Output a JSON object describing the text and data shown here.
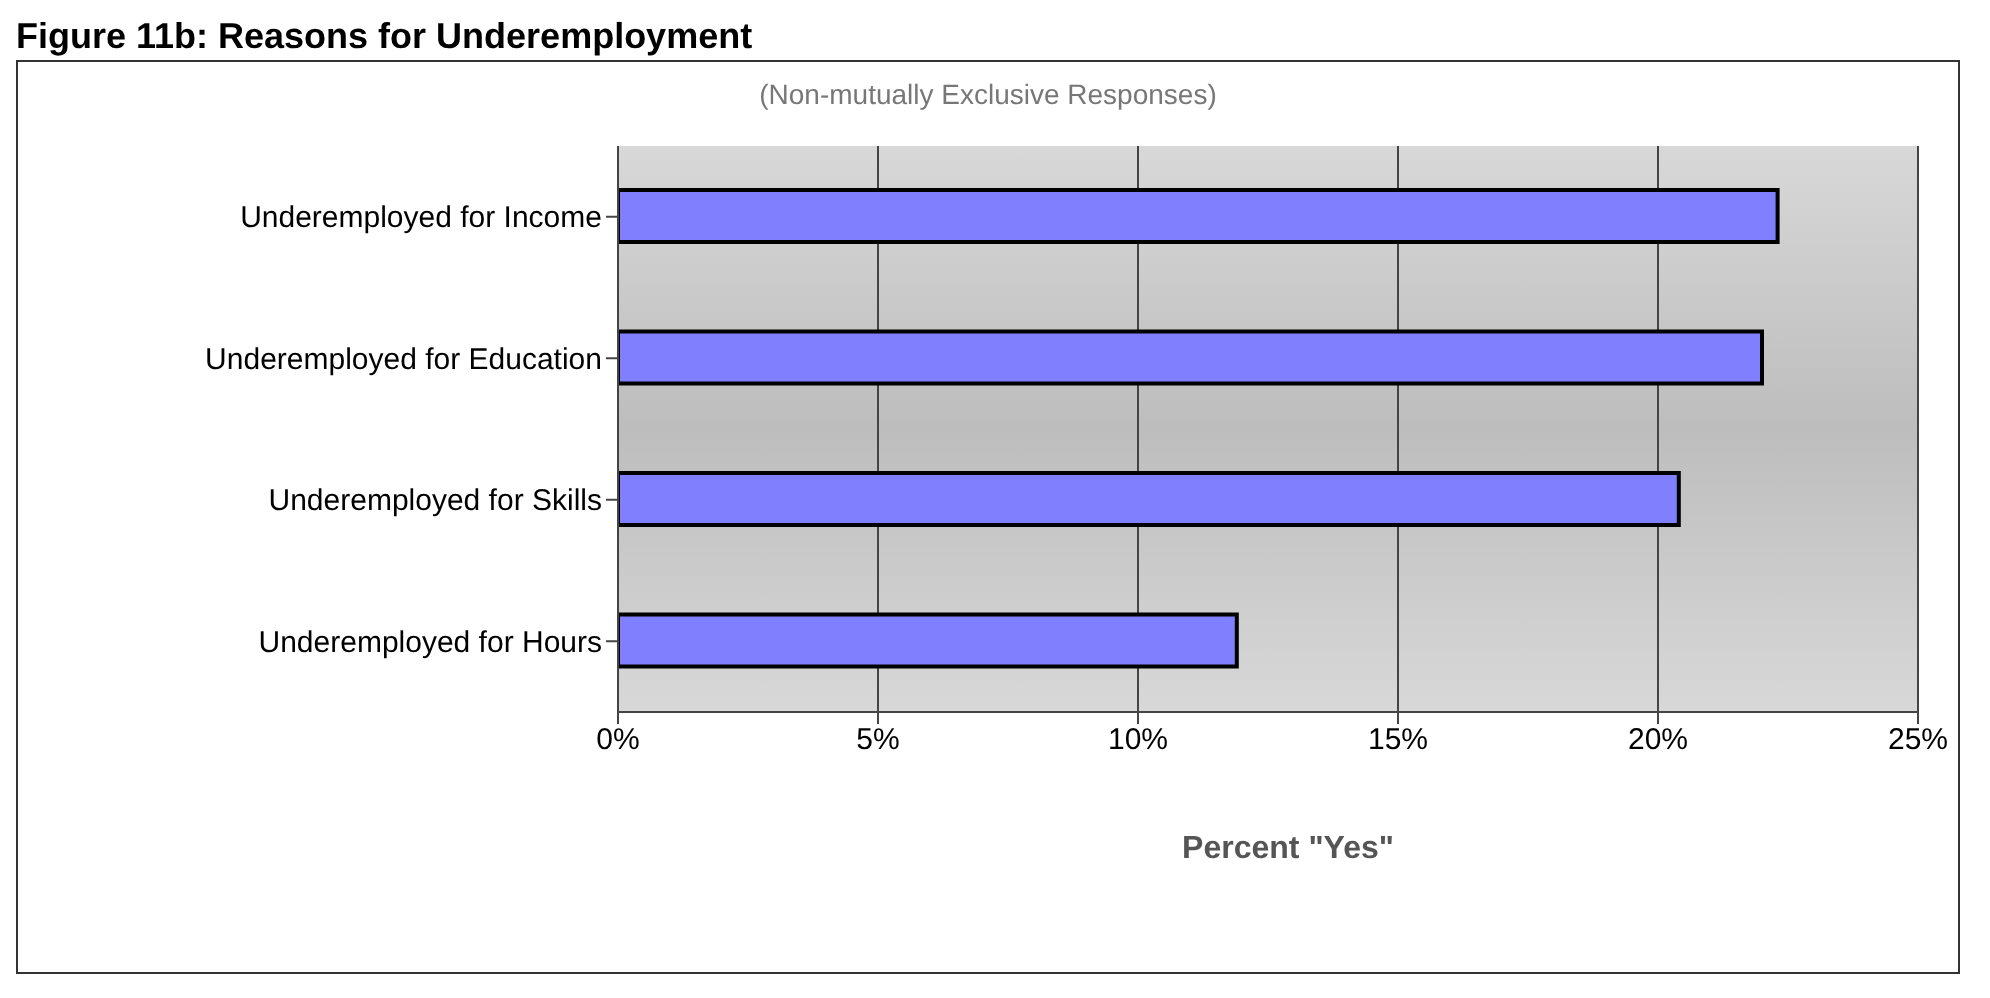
{
  "chart_data": {
    "type": "bar",
    "orientation": "horizontal",
    "title": "Figure 11b: Reasons for Underemployment",
    "subtitle": "(Non-mutually Exclusive Responses)",
    "xlabel": "Percent \"Yes\"",
    "categories": [
      "Underemployed for Income",
      "Underemployed for Education",
      "Underemployed for Skills",
      "Underemployed for Hours"
    ],
    "values": [
      22.3,
      22.0,
      20.4,
      11.9
    ],
    "color": "#8080ff",
    "xlim": [
      0,
      25
    ],
    "xticks": [
      {
        "value": 0,
        "label": "0%"
      },
      {
        "value": 5,
        "label": "5%"
      },
      {
        "value": 10,
        "label": "10%"
      },
      {
        "value": 15,
        "label": "15%"
      },
      {
        "value": 20,
        "label": "20%"
      },
      {
        "value": 25,
        "label": "25%"
      }
    ],
    "grid": "x",
    "legend": false
  }
}
